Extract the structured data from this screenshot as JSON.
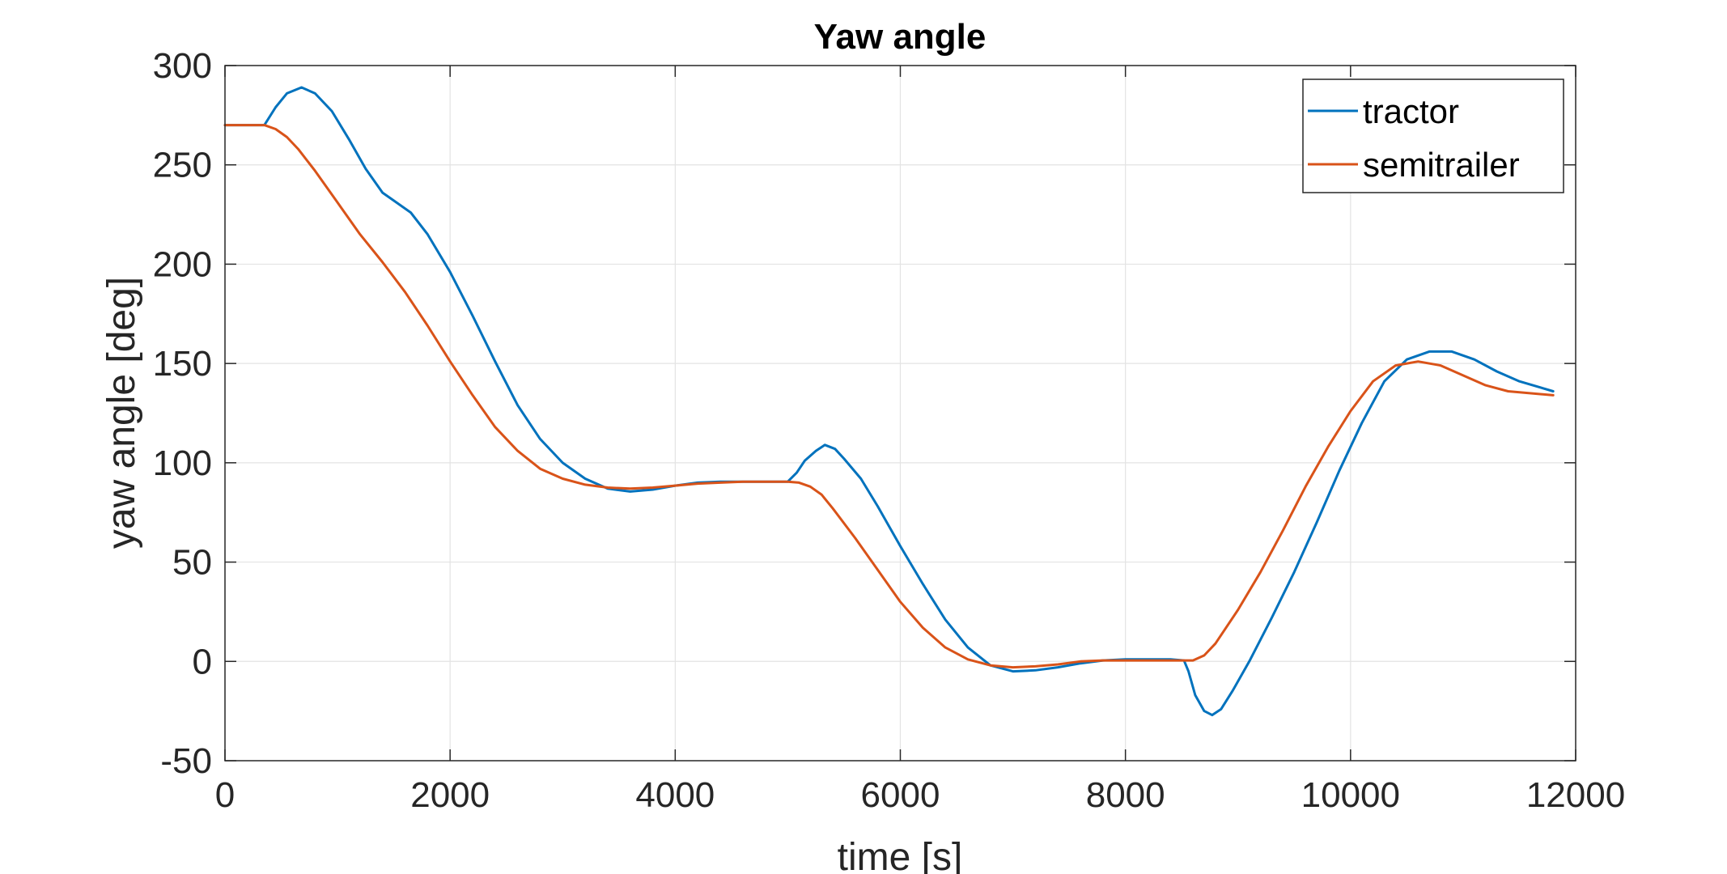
{
  "chart_data": {
    "type": "line",
    "title": "Yaw angle",
    "xlabel": "time [s]",
    "ylabel": "yaw angle [deg]",
    "xlim": [
      0,
      12000
    ],
    "ylim": [
      -50,
      300
    ],
    "x_ticks": [
      0,
      2000,
      4000,
      6000,
      8000,
      10000,
      12000
    ],
    "y_ticks": [
      -50,
      0,
      50,
      100,
      150,
      200,
      250,
      300
    ],
    "x_tick_labels": [
      "0",
      "2000",
      "4000",
      "6000",
      "8000",
      "10000",
      "12000"
    ],
    "y_tick_labels": [
      "-50",
      "0",
      "50",
      "100",
      "150",
      "200",
      "250",
      "300"
    ],
    "grid": true,
    "legend_position": "top-right",
    "series": [
      {
        "name": "tractor",
        "color": "#0072BD",
        "x": [
          0,
          350,
          450,
          550,
          680,
          800,
          950,
          1100,
          1250,
          1400,
          1500,
          1650,
          1800,
          2000,
          2200,
          2400,
          2600,
          2800,
          3000,
          3200,
          3400,
          3600,
          3800,
          4000,
          4200,
          4400,
          4600,
          4800,
          5000,
          5080,
          5150,
          5250,
          5330,
          5420,
          5500,
          5650,
          5800,
          6000,
          6200,
          6400,
          6600,
          6800,
          7000,
          7200,
          7400,
          7600,
          7800,
          8000,
          8200,
          8400,
          8520,
          8560,
          8620,
          8700,
          8770,
          8850,
          8950,
          9100,
          9300,
          9500,
          9700,
          9900,
          10100,
          10300,
          10500,
          10700,
          10900,
          11100,
          11300,
          11500,
          11800
        ],
        "y": [
          270,
          270,
          279,
          286,
          289,
          286,
          277,
          263,
          248,
          236,
          232,
          226,
          215,
          196,
          174,
          151,
          129,
          112,
          100,
          92,
          87,
          85.5,
          86.5,
          88.5,
          90,
          90.5,
          90.5,
          90.5,
          90.5,
          95,
          101,
          106,
          109,
          107,
          102,
          92,
          78,
          58,
          39,
          21,
          7,
          -2,
          -5,
          -4.5,
          -3,
          -1,
          0.5,
          1,
          1,
          1,
          0.5,
          -5,
          -17,
          -25,
          -27,
          -24,
          -15,
          0,
          22,
          45,
          70,
          96,
          120,
          141,
          152,
          156,
          156,
          152,
          146,
          141,
          136
        ]
      },
      {
        "name": "semitrailer",
        "color": "#D95319",
        "x": [
          0,
          350,
          450,
          550,
          650,
          800,
          1000,
          1200,
          1400,
          1600,
          1800,
          2000,
          2200,
          2400,
          2600,
          2800,
          3000,
          3200,
          3400,
          3600,
          3800,
          4000,
          4200,
          4400,
          4600,
          4800,
          5000,
          5100,
          5200,
          5300,
          5400,
          5600,
          5800,
          6000,
          6200,
          6400,
          6600,
          6800,
          7000,
          7200,
          7400,
          7600,
          7800,
          8000,
          8200,
          8400,
          8520,
          8600,
          8700,
          8800,
          9000,
          9200,
          9400,
          9600,
          9800,
          10000,
          10200,
          10400,
          10600,
          10800,
          11000,
          11200,
          11400,
          11800
        ],
        "y": [
          270,
          270,
          268,
          264,
          258,
          247,
          231,
          215,
          201,
          186,
          169,
          151,
          134,
          118,
          106,
          97,
          92,
          89,
          87.5,
          87,
          87.5,
          88.5,
          89.5,
          90,
          90.5,
          90.5,
          90.5,
          90,
          88,
          84,
          77,
          62,
          46,
          30,
          17,
          7,
          1,
          -2,
          -3,
          -2.5,
          -1.5,
          0,
          0.5,
          0.5,
          0.5,
          0.5,
          0.5,
          0.5,
          3,
          9,
          26,
          45,
          66,
          88,
          108,
          126,
          141,
          149,
          151,
          149,
          144,
          139,
          136,
          134
        ]
      }
    ]
  }
}
